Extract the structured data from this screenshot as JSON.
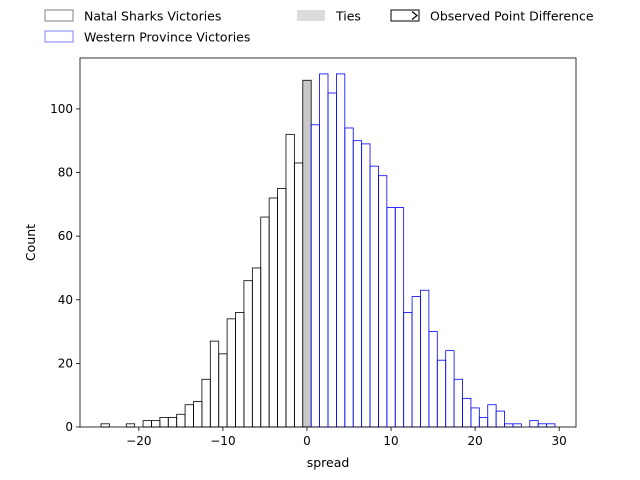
{
  "chart_data": {
    "type": "histogram",
    "xlabel": "spread",
    "ylabel": "Count",
    "xlim": [
      -27,
      32
    ],
    "ylim": [
      0,
      116
    ],
    "bin_width": 1,
    "x_ticks": [
      -20,
      -10,
      0,
      10,
      20,
      30
    ],
    "y_ticks": [
      0,
      20,
      40,
      60,
      80,
      100
    ],
    "grid": false,
    "legend_position": "top",
    "legend": [
      {
        "label": "Natal Sharks Victories",
        "style": "outline-gray"
      },
      {
        "label": "Western Province Victories",
        "style": "outline-blue"
      },
      {
        "label": "Ties",
        "style": "filled-gray"
      },
      {
        "label": "Observed Point Difference",
        "style": "marker-arrow"
      }
    ],
    "series": [
      {
        "name": "Natal Sharks Victories",
        "color": "#000000",
        "fill": "none",
        "x": [
          -25,
          -24,
          -23,
          -22,
          -21,
          -20,
          -19,
          -18,
          -17,
          -16,
          -15,
          -14,
          -13,
          -12,
          -11,
          -10,
          -9,
          -8,
          -7,
          -6,
          -5,
          -4,
          -3,
          -2,
          -1
        ],
        "values": [
          0,
          1,
          0,
          0,
          1,
          0,
          2,
          2,
          3,
          3,
          4,
          7,
          8,
          15,
          27,
          23,
          34,
          36,
          46,
          50,
          66,
          72,
          75,
          92,
          83
        ]
      },
      {
        "name": "Ties",
        "color": "#000000",
        "fill": "#c8c8c8",
        "x": [
          0
        ],
        "values": [
          109
        ]
      },
      {
        "name": "Western Province Victories",
        "color": "#0000ff",
        "fill": "none",
        "x": [
          1,
          2,
          3,
          4,
          5,
          6,
          7,
          8,
          9,
          10,
          11,
          12,
          13,
          14,
          15,
          16,
          17,
          18,
          19,
          20,
          21,
          22,
          23,
          24,
          25,
          26,
          27,
          28,
          29
        ],
        "values": [
          95,
          111,
          105,
          111,
          94,
          90,
          89,
          82,
          79,
          69,
          69,
          36,
          41,
          43,
          30,
          21,
          24,
          15,
          9,
          6,
          3,
          7,
          5,
          1,
          1,
          0,
          2,
          1,
          1
        ]
      }
    ]
  }
}
